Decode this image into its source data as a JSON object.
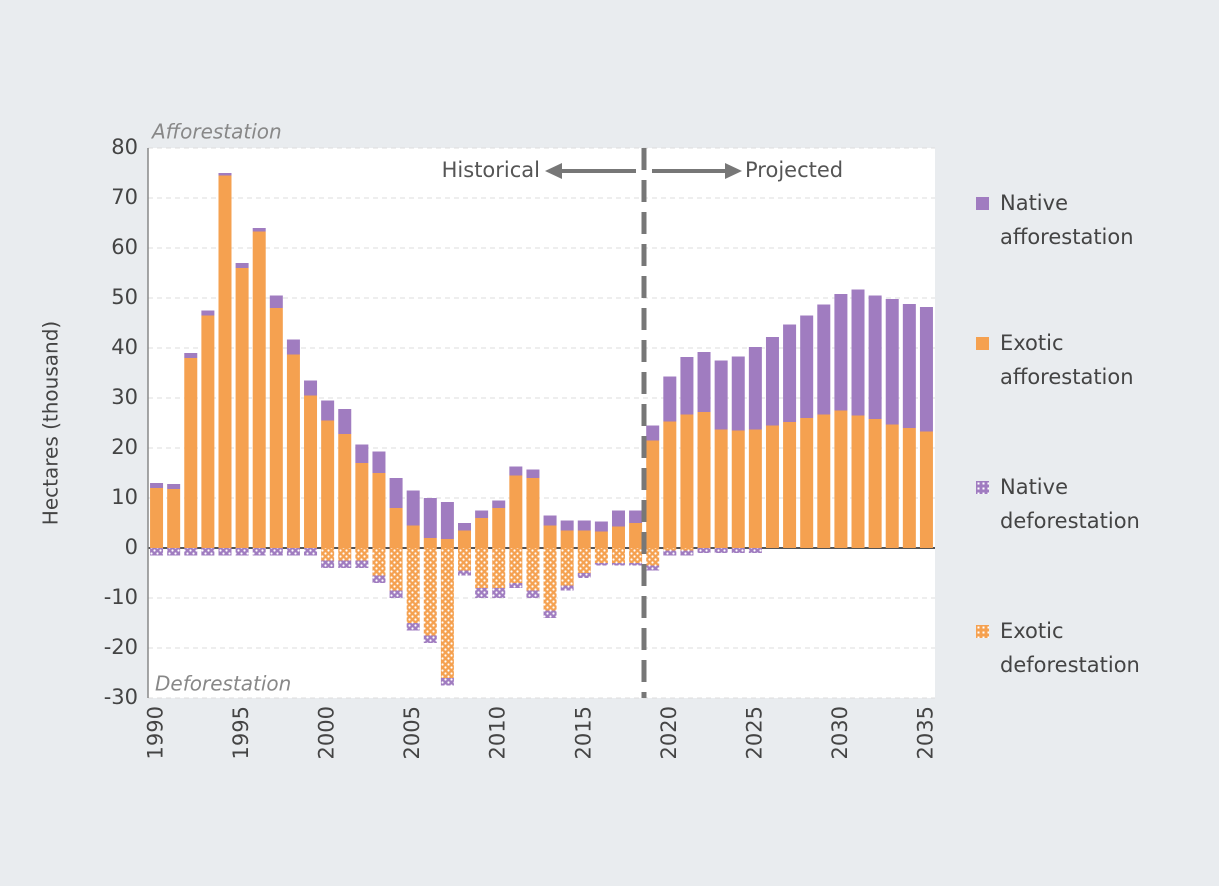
{
  "chart_data": {
    "type": "bar",
    "stacked": true,
    "y_label": "Hectares (thousand)",
    "annotations": [
      "Afforestation",
      "Deforestation",
      "Historical",
      "Projected"
    ],
    "x": [
      1990,
      1991,
      1992,
      1993,
      1994,
      1995,
      1996,
      1997,
      1998,
      1999,
      2000,
      2001,
      2002,
      2003,
      2004,
      2005,
      2006,
      2007,
      2008,
      2009,
      2010,
      2011,
      2012,
      2013,
      2014,
      2015,
      2016,
      2017,
      2018,
      2019,
      2020,
      2021,
      2022,
      2023,
      2024,
      2025,
      2026,
      2027,
      2028,
      2029,
      2030,
      2031,
      2032,
      2033,
      2034,
      2035
    ],
    "xlim": [
      1989.5,
      2035.5
    ],
    "xticks": [
      1990,
      1995,
      2000,
      2005,
      2010,
      2015,
      2020,
      2025,
      2030,
      2035
    ],
    "ylim": [
      -30,
      80
    ],
    "yticks": [
      -30,
      -20,
      -10,
      0,
      10,
      20,
      30,
      40,
      50,
      60,
      70,
      80
    ],
    "grid": true,
    "legend": "right",
    "series": [
      {
        "name": "Native afforestation",
        "color": "#a07cc0",
        "hatch": false,
        "values": [
          1,
          1,
          1,
          1,
          0.5,
          1,
          0.7,
          2.5,
          3,
          3,
          4,
          5,
          3.7,
          4.3,
          6,
          7,
          8,
          7.4,
          1.5,
          1.5,
          1.5,
          1.8,
          1.7,
          2,
          2,
          2,
          2,
          3.2,
          2.5,
          3,
          9,
          11.5,
          12,
          13.8,
          14.8,
          16.5,
          17.7,
          19.5,
          20.5,
          22,
          23.3,
          25.2,
          24.7,
          25.1,
          24.8,
          24.9
        ]
      },
      {
        "name": "Exotic afforestation",
        "color": "#f5a150",
        "hatch": false,
        "values": [
          12,
          11.8,
          38,
          46.5,
          74.5,
          56,
          63.3,
          48,
          38.7,
          30.5,
          25.5,
          22.8,
          17,
          15,
          8,
          4.5,
          2,
          1.8,
          3.5,
          6,
          8,
          14.5,
          14,
          4.5,
          3.5,
          3.5,
          3.3,
          4.3,
          5,
          21.5,
          25.3,
          26.7,
          27.2,
          23.7,
          23.5,
          23.7,
          24.5,
          25.2,
          26,
          26.7,
          27.5,
          26.5,
          25.8,
          24.7,
          24,
          23.3
        ]
      },
      {
        "name": "Native deforestation",
        "color": "#a07cc0",
        "hatch": true,
        "values": [
          -1.5,
          -1.5,
          -1.5,
          -1.5,
          -1.5,
          -1.5,
          -1.5,
          -1.5,
          -1.5,
          -1.5,
          -1.5,
          -1.5,
          -1.5,
          -1.5,
          -1.5,
          -1.5,
          -1.5,
          -1.5,
          -1,
          -2,
          -2,
          -1,
          -1.5,
          -1.5,
          -1,
          -1,
          -0.5,
          -0.5,
          -0.5,
          -1,
          -1,
          -1,
          -1,
          -1,
          -1,
          -1,
          0,
          0,
          0,
          0,
          0,
          0,
          0,
          0,
          0,
          0
        ]
      },
      {
        "name": "Exotic deforestation",
        "color": "#f5a150",
        "hatch": true,
        "values": [
          0,
          0,
          0,
          0,
          0,
          0,
          0,
          0,
          0,
          0,
          -2.5,
          -2.5,
          -2.5,
          -5.5,
          -8.5,
          -15,
          -17.5,
          -26,
          -4.5,
          -8,
          -8,
          -7,
          -8.5,
          -12.5,
          -7.5,
          -5,
          -3,
          -3,
          -3,
          -3.5,
          -0.5,
          -0.5,
          0,
          0,
          0,
          0,
          0,
          0,
          0,
          0,
          0,
          0,
          0,
          0,
          0,
          0
        ]
      }
    ]
  }
}
